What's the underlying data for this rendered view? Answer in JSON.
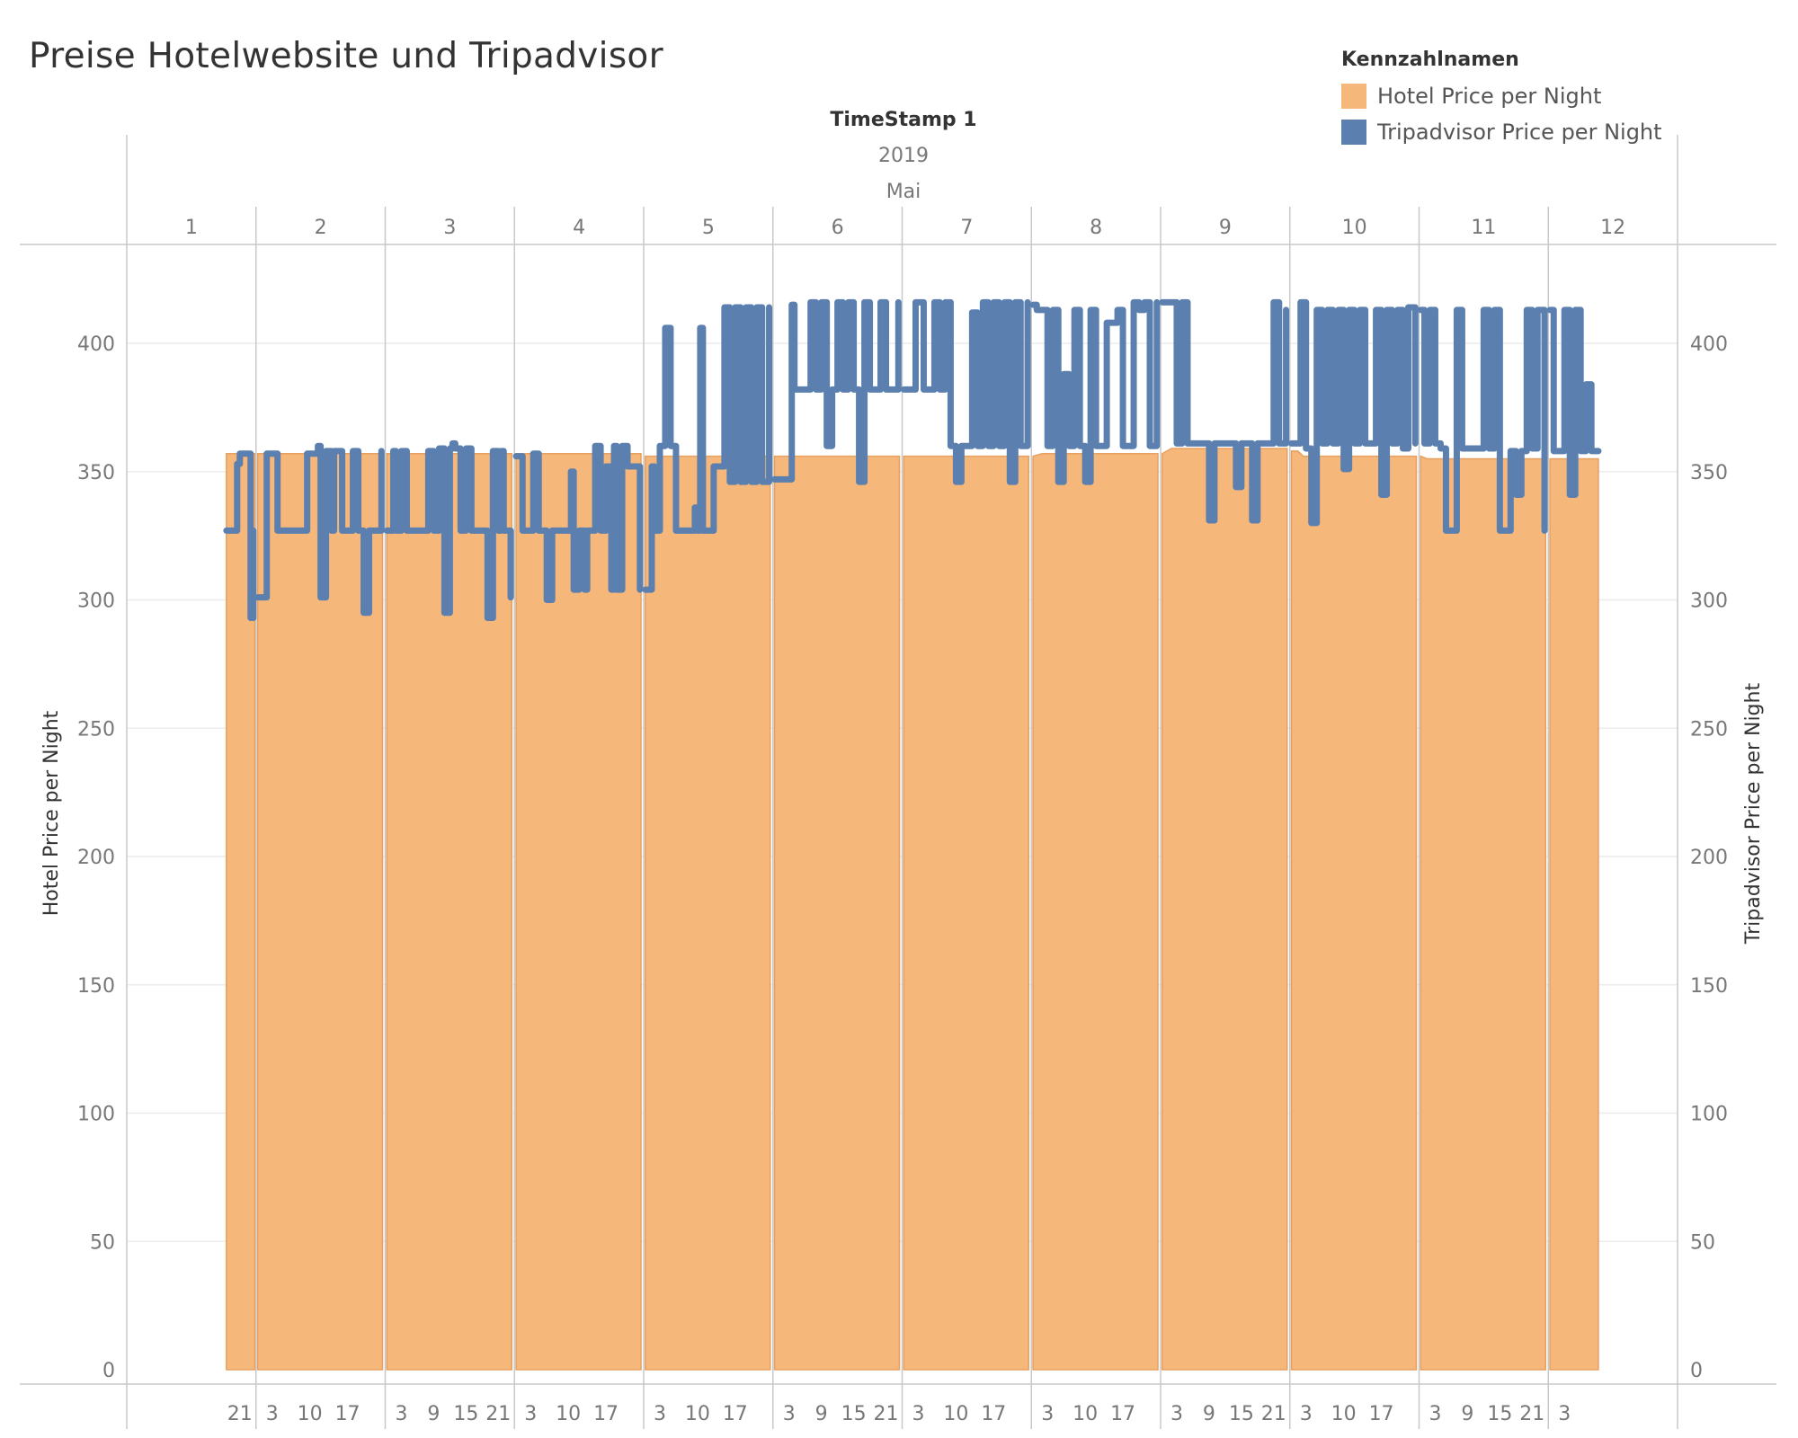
{
  "title": "Preise Hotelwebsite und Tripadvisor",
  "legend": {
    "title": "Kennzahlnamen",
    "items": [
      {
        "label": "Hotel Price per Night",
        "color": "#F5B77A"
      },
      {
        "label": "Tripadvisor Price per Night",
        "color": "#5B7FAE"
      }
    ]
  },
  "header": {
    "title": "TimeStamp 1",
    "year": "2019",
    "month": "Mai"
  },
  "chart_data": {
    "type": "area + line (step)",
    "xlabel": "TimeStamp 1",
    "ylabel_left": "Hotel Price per Night",
    "ylabel_right": "Tripadvisor Price per Night",
    "ylim": [
      0,
      420
    ],
    "yticks": [
      0,
      50,
      100,
      150,
      200,
      250,
      300,
      350,
      400
    ],
    "x_unit": "hours since 2019-05-01 00:00",
    "days": [
      {
        "label": "1",
        "start": 0,
        "end": 24,
        "hour_ticks": [
          21
        ]
      },
      {
        "label": "2",
        "start": 24,
        "end": 48,
        "hour_ticks": [
          3,
          10,
          17
        ]
      },
      {
        "label": "3",
        "start": 48,
        "end": 72,
        "hour_ticks": [
          3,
          9,
          15,
          21
        ]
      },
      {
        "label": "4",
        "start": 72,
        "end": 96,
        "hour_ticks": [
          3,
          10,
          17
        ]
      },
      {
        "label": "5",
        "start": 96,
        "end": 120,
        "hour_ticks": [
          3,
          10,
          17
        ]
      },
      {
        "label": "6",
        "start": 120,
        "end": 144,
        "hour_ticks": [
          3,
          9,
          15,
          21
        ]
      },
      {
        "label": "7",
        "start": 144,
        "end": 168,
        "hour_ticks": [
          3,
          10,
          17
        ]
      },
      {
        "label": "8",
        "start": 168,
        "end": 192,
        "hour_ticks": [
          3,
          10,
          17
        ]
      },
      {
        "label": "9",
        "start": 192,
        "end": 216,
        "hour_ticks": [
          3,
          9,
          15,
          21
        ]
      },
      {
        "label": "10",
        "start": 216,
        "end": 240,
        "hour_ticks": [
          3,
          10,
          17
        ]
      },
      {
        "label": "11",
        "start": 240,
        "end": 264,
        "hour_ticks": [
          3,
          9,
          15,
          21
        ]
      },
      {
        "label": "12",
        "start": 264,
        "end": 288,
        "hour_ticks": [
          3
        ]
      }
    ],
    "series": [
      {
        "name": "Hotel Price per Night",
        "style": "area",
        "segments": [
          {
            "x": [
              18.5,
              23.8
            ],
            "y": [
              357,
              357
            ]
          },
          {
            "x": [
              24.3,
              47.5
            ],
            "y": [
              357,
              357
            ]
          },
          {
            "x": [
              48.3,
              71.5
            ],
            "y": [
              357,
              357
            ]
          },
          {
            "x": [
              72.3,
              95.5
            ],
            "y": [
              357,
              357
            ]
          },
          {
            "x": [
              96.3,
              119.5
            ],
            "y": [
              356,
              356
            ]
          },
          {
            "x": [
              120.3,
              143.5
            ],
            "y": [
              356,
              356
            ]
          },
          {
            "x": [
              144.3,
              167.5
            ],
            "y": [
              356,
              356
            ]
          },
          {
            "x": [
              168.3,
              170.0,
              191.5
            ],
            "y": [
              356,
              357,
              357
            ]
          },
          {
            "x": [
              192.3,
              194.0,
              215.5
            ],
            "y": [
              357,
              359,
              359
            ]
          },
          {
            "x": [
              216.3,
              217.5,
              218.5,
              239.5
            ],
            "y": [
              358,
              358,
              356,
              356
            ]
          },
          {
            "x": [
              240.3,
              241.5,
              263.5
            ],
            "y": [
              356,
              355,
              355
            ]
          },
          {
            "x": [
              264.3,
              273.3
            ],
            "y": [
              355,
              355
            ]
          }
        ]
      },
      {
        "name": "Tripadvisor Price per Night",
        "style": "step-line",
        "segments": [
          {
            "x": [
              18.5,
              20.5,
              21.0,
              22.0,
              23.0,
              23.5
            ],
            "y": [
              327,
              353,
              357,
              357,
              293,
              327
            ]
          },
          {
            "x": [
              24.3,
              25.5,
              26,
              28,
              31,
              32,
              33.5,
              34,
              35,
              35.5,
              36,
              37,
              38,
              38.5,
              40,
              41,
              42,
              43,
              44,
              45,
              46,
              47.3
            ],
            "y": [
              301,
              301,
              357,
              327,
              327,
              327,
              357,
              357,
              357,
              360,
              301,
              358,
              327,
              358,
              327,
              327,
              358,
              327,
              295,
              327,
              327,
              358
            ]
          },
          {
            "x": [
              48.3,
              49.5,
              50,
              51,
              52,
              53,
              54,
              56,
              57,
              58,
              59,
              60,
              60.5,
              61,
              62,
              63,
              64,
              65.5,
              67,
              67.5,
              68,
              69,
              69.5,
              70,
              71.3
            ],
            "y": [
              327,
              358,
              327,
              358,
              327,
              327,
              327,
              358,
              327,
              359,
              295,
              359,
              361,
              359,
              327,
              359,
              327,
              327,
              293,
              293,
              358,
              327,
              358,
              327,
              301
            ]
          },
          {
            "x": [
              72.3,
              73.5,
              74,
              75.5,
              76.5,
              78,
              79,
              80,
              81,
              82.5,
              83,
              84,
              85,
              85.5,
              86,
              87,
              88,
              89,
              90,
              90.5,
              91,
              92,
              93,
              94.5,
              95.3
            ],
            "y": [
              356,
              327,
              327,
              357,
              327,
              300,
              327,
              327,
              327,
              350,
              304,
              327,
              304,
              327,
              327,
              360,
              327,
              352,
              304,
              360,
              304,
              360,
              352,
              352,
              304
            ]
          },
          {
            "x": [
              96.3,
              97.5,
              98,
              99,
              100,
              101,
              102,
              104,
              105,
              105.5,
              106,
              106.5,
              107,
              108,
              109,
              110,
              111,
              112,
              113,
              114,
              115,
              116,
              117,
              118,
              119.3
            ],
            "y": [
              304,
              352,
              327,
              360,
              406,
              360,
              327,
              327,
              327,
              336,
              327,
              406,
              327,
              327,
              352,
              352,
              414,
              346,
              414,
              346,
              414,
              346,
              414,
              346,
              414
            ]
          },
          {
            "x": [
              120.3,
              123,
              123.5,
              124,
              126,
              127,
              128,
              129,
              130,
              131,
              132,
              133,
              134,
              135,
              136,
              137,
              138,
              139,
              140,
              141,
              142,
              143.3
            ],
            "y": [
              347,
              347,
              415,
              382,
              382,
              416,
              382,
              416,
              360,
              382,
              416,
              382,
              416,
              382,
              346,
              416,
              382,
              382,
              416,
              382,
              382,
              416
            ]
          },
          {
            "x": [
              144.3,
              146,
              146.5,
              148,
              149,
              150,
              151,
              152,
              153,
              154,
              155,
              156,
              157,
              158,
              159,
              160,
              161,
              162,
              163,
              164,
              165,
              166,
              167.3
            ],
            "y": [
              382,
              382,
              416,
              382,
              382,
              416,
              382,
              416,
              360,
              346,
              360,
              360,
              412,
              360,
              416,
              360,
              416,
              360,
              416,
              346,
              416,
              360,
              416
            ]
          },
          {
            "x": [
              168.3,
              169,
              170,
              171,
              172,
              173,
              174,
              175,
              176,
              177,
              178,
              179,
              180,
              181,
              182,
              183,
              184,
              185,
              186,
              187,
              188,
              189,
              190,
              191.3
            ],
            "y": [
              415,
              413,
              413,
              360,
              413,
              346,
              388,
              360,
              413,
              360,
              346,
              413,
              360,
              360,
              408,
              408,
              413,
              360,
              360,
              416,
              413,
              416,
              360,
              416
            ]
          },
          {
            "x": [
              192.3,
              193,
              194,
              195,
              196,
              197,
              198,
              199,
              200,
              201,
              202,
              203,
              204,
              205,
              206,
              207,
              208,
              209,
              210,
              211,
              212,
              213,
              214,
              215.3
            ],
            "y": [
              416,
              416,
              416,
              361,
              416,
              361,
              361,
              361,
              361,
              331,
              361,
              361,
              361,
              361,
              344,
              361,
              361,
              331,
              361,
              361,
              361,
              416,
              361,
              413
            ]
          },
          {
            "x": [
              216.3,
              217,
              218,
              219,
              220,
              221,
              222,
              223,
              224,
              225,
              226,
              227,
              228,
              229,
              230,
              231,
              232,
              233,
              234,
              235,
              236,
              237,
              238,
              239.3
            ],
            "y": [
              361,
              361,
              416,
              359,
              330,
              413,
              361,
              413,
              361,
              413,
              351,
              413,
              361,
              413,
              361,
              361,
              413,
              341,
              413,
              361,
              413,
              359,
              414,
              361
            ]
          },
          {
            "x": [
              240.3,
              241,
              242,
              243,
              244,
              245,
              246,
              247,
              248,
              249,
              250,
              251,
              252,
              253,
              254,
              255,
              256,
              257,
              258,
              259,
              260,
              261,
              262,
              263.3
            ],
            "y": [
              413,
              361,
              413,
              361,
              359,
              327,
              327,
              413,
              359,
              359,
              359,
              359,
              413,
              359,
              413,
              327,
              327,
              358,
              341,
              358,
              413,
              359,
              413,
              327
            ]
          },
          {
            "x": [
              264.3,
              265,
              266,
              267,
              268,
              269,
              270,
              271,
              272,
              273.3
            ],
            "y": [
              413,
              358,
              358,
              413,
              341,
              413,
              358,
              384,
              358,
              358
            ]
          }
        ]
      }
    ]
  }
}
